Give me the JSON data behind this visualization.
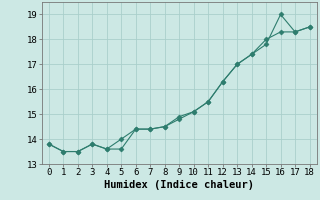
{
  "title": "",
  "xlabel": "Humidex (Indice chaleur)",
  "x": [
    0,
    1,
    2,
    3,
    4,
    5,
    6,
    7,
    8,
    9,
    10,
    11,
    12,
    13,
    14,
    15,
    16,
    17,
    18
  ],
  "series1": [
    13.8,
    13.5,
    13.5,
    13.8,
    13.6,
    13.6,
    14.4,
    14.4,
    14.5,
    14.8,
    15.1,
    15.5,
    16.3,
    17.0,
    17.4,
    17.8,
    19.0,
    18.3,
    18.5
  ],
  "series2": [
    13.8,
    13.5,
    13.5,
    13.8,
    13.6,
    14.0,
    14.4,
    14.4,
    14.5,
    14.9,
    15.1,
    15.5,
    16.3,
    17.0,
    17.4,
    18.0,
    18.3,
    18.3,
    18.5
  ],
  "line_color": "#2e7d6e",
  "bg_color": "#cce8e4",
  "grid_color": "#aacfcb",
  "ylim": [
    13.0,
    19.5
  ],
  "yticks": [
    13,
    14,
    15,
    16,
    17,
    18,
    19
  ],
  "xticks": [
    0,
    1,
    2,
    3,
    4,
    5,
    6,
    7,
    8,
    9,
    10,
    11,
    12,
    13,
    14,
    15,
    16,
    17,
    18
  ],
  "tick_fontsize": 6.5,
  "xlabel_fontsize": 7.5,
  "marker": "D",
  "markersize": 2.5,
  "linewidth": 0.8
}
